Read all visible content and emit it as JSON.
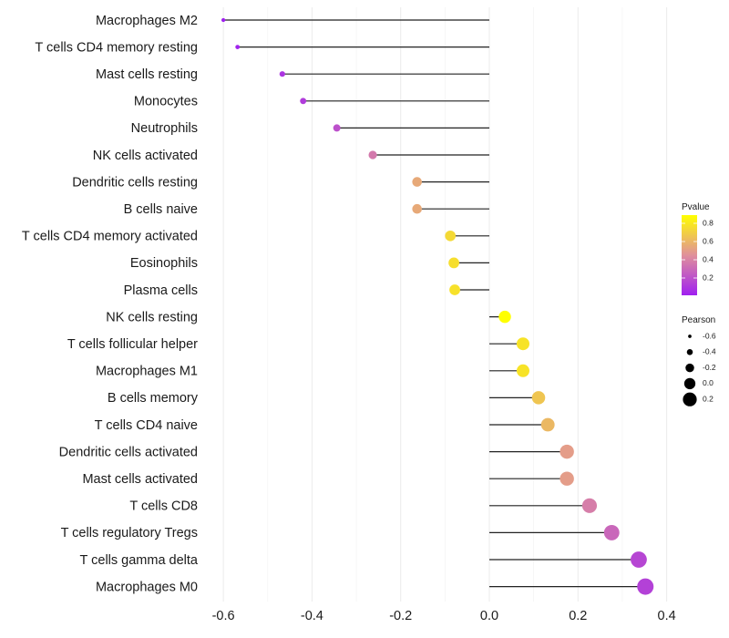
{
  "chart_data": {
    "type": "lollipop",
    "title": "",
    "xlabel": "",
    "ylabel": "",
    "xlim": [
      -0.62,
      0.44
    ],
    "xticks": [
      -0.6,
      -0.4,
      -0.2,
      0.0,
      0.2,
      0.4
    ],
    "xtick_labels": [
      "-0.6",
      "-0.4",
      "-0.2",
      "0.0",
      "0.2",
      "0.4"
    ],
    "grid": true,
    "categories": [
      "Macrophages M2",
      "T cells CD4 memory resting",
      "Mast cells resting",
      "Monocytes",
      "Neutrophils",
      "NK cells activated",
      "Dendritic cells resting",
      "B cells naive",
      "T cells CD4 memory activated",
      "Eosinophils",
      "Plasma cells",
      "NK cells resting",
      "T cells follicular helper",
      "Macrophages M1",
      "B cells memory",
      "T cells CD4 naive",
      "Dendritic cells activated",
      "Mast cells activated",
      "T cells CD8",
      "T cells regulatory  Tregs ",
      "T cells gamma delta",
      "Macrophages M0"
    ],
    "pearson": [
      -0.6,
      -0.568,
      -0.467,
      -0.42,
      -0.344,
      -0.263,
      -0.163,
      -0.163,
      -0.088,
      -0.08,
      -0.078,
      0.035,
      0.076,
      0.076,
      0.111,
      0.132,
      0.175,
      0.175,
      0.226,
      0.276,
      0.337,
      0.352
    ],
    "pvalue": [
      0.01,
      0.02,
      0.09,
      0.12,
      0.2,
      0.36,
      0.55,
      0.55,
      0.74,
      0.76,
      0.77,
      0.89,
      0.78,
      0.78,
      0.66,
      0.61,
      0.5,
      0.5,
      0.38,
      0.29,
      0.16,
      0.14
    ],
    "legend": {
      "position": "right",
      "color": {
        "title": "Pvalue",
        "range": [
          0.01,
          0.89
        ],
        "ticks": [
          0.8,
          0.6,
          0.4,
          0.2
        ],
        "tick_labels": [
          "0.8",
          "0.6",
          "0.4",
          "0.2"
        ],
        "low_color": "#a020f0",
        "mid_color": "#e0909b",
        "high_color": "#ffff00"
      },
      "size": {
        "title": "Pearson",
        "values": [
          -0.6,
          -0.4,
          -0.2,
          0.0,
          0.2
        ],
        "labels": [
          "-0.6",
          "-0.4",
          "-0.2",
          "0.0",
          "0.2"
        ]
      }
    }
  }
}
